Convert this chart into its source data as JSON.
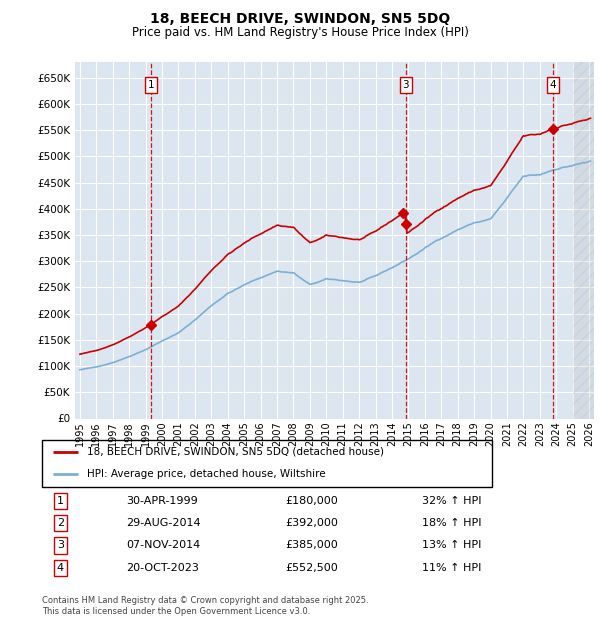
{
  "title": "18, BEECH DRIVE, SWINDON, SN5 5DQ",
  "subtitle": "Price paid vs. HM Land Registry's House Price Index (HPI)",
  "ylim": [
    0,
    680000
  ],
  "yticks": [
    0,
    50000,
    100000,
    150000,
    200000,
    250000,
    300000,
    350000,
    400000,
    450000,
    500000,
    550000,
    600000,
    650000
  ],
  "xlim_start": 1994.7,
  "xlim_end": 2026.3,
  "transactions": [
    {
      "num": 1,
      "date": "30-APR-1999",
      "price": 180000,
      "year_f": 1999.33,
      "hpi_pct": "32% ↑ HPI"
    },
    {
      "num": 2,
      "date": "29-AUG-2014",
      "price": 392000,
      "year_f": 2014.66,
      "hpi_pct": "18% ↑ HPI"
    },
    {
      "num": 3,
      "date": "07-NOV-2014",
      "price": 385000,
      "year_f": 2014.85,
      "hpi_pct": "13% ↑ HPI"
    },
    {
      "num": 4,
      "date": "20-OCT-2023",
      "price": 552500,
      "year_f": 2023.8,
      "hpi_pct": "11% ↑ HPI"
    }
  ],
  "show_vline": [
    1,
    3,
    4
  ],
  "line_color_price": "#cc0000",
  "line_color_hpi": "#7bafd4",
  "bg_color": "#dce6f1",
  "grid_color": "#ffffff",
  "legend_label_price": "18, BEECH DRIVE, SWINDON, SN5 5DQ (detached house)",
  "legend_label_hpi": "HPI: Average price, detached house, Wiltshire",
  "footer": "Contains HM Land Registry data © Crown copyright and database right 2025.\nThis data is licensed under the Open Government Licence v3.0.",
  "xticks": [
    1995,
    1996,
    1997,
    1998,
    1999,
    2000,
    2001,
    2002,
    2003,
    2004,
    2005,
    2006,
    2007,
    2008,
    2009,
    2010,
    2011,
    2012,
    2013,
    2014,
    2015,
    2016,
    2017,
    2018,
    2019,
    2020,
    2021,
    2022,
    2023,
    2024,
    2025,
    2026
  ],
  "hatch_start": 2025.0
}
